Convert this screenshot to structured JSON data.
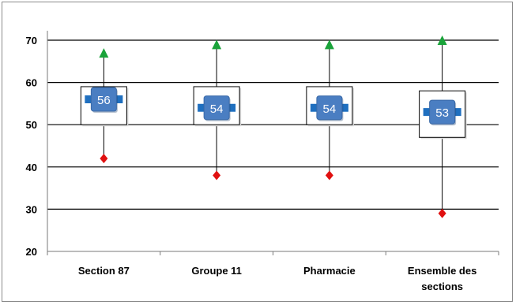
{
  "chart_data": {
    "type": "boxplot",
    "ylim": [
      20,
      70
    ],
    "yticks": [
      20,
      30,
      40,
      50,
      60,
      70
    ],
    "grid": true,
    "categories": [
      [
        "Section 87"
      ],
      [
        "Groupe 11"
      ],
      [
        "Pharmacie"
      ],
      [
        "Ensemble des",
        "sections"
      ]
    ],
    "boxes": [
      {
        "min": 42,
        "q1": 50,
        "median": 56,
        "q3": 59,
        "max": 67,
        "median_label": "56"
      },
      {
        "min": 38,
        "q1": 50,
        "median": 54,
        "q3": 59,
        "max": 69,
        "median_label": "54"
      },
      {
        "min": 38,
        "q1": 50,
        "median": 54,
        "q3": 59,
        "max": 69,
        "median_label": "54"
      },
      {
        "min": 29,
        "q1": 47,
        "median": 53,
        "q3": 58,
        "max": 70,
        "median_label": "53"
      }
    ],
    "colors": {
      "max_marker": "#1aa33a",
      "min_marker": "#e01010",
      "median_box": "#4a7ec2",
      "median_bar": "#1f6fbf",
      "grid": "#000000"
    }
  }
}
